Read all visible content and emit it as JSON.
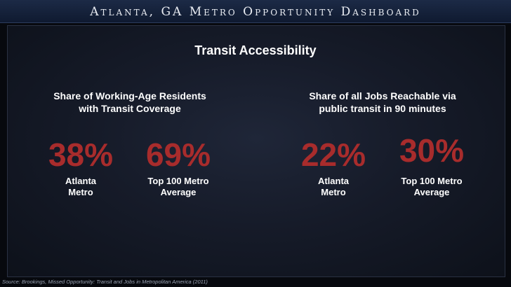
{
  "header": {
    "title": "Atlanta, GA Metro Opportunity Dashboard"
  },
  "main": {
    "section_title": "Transit Accessibility",
    "groups": [
      {
        "title_line1": "Share of Working-Age Residents",
        "title_line2": "with Transit Coverage",
        "stats": [
          {
            "value": "38%",
            "label_line1": "Atlanta",
            "label_line2": "Metro"
          },
          {
            "value": "69%",
            "label_line1": "Top 100 Metro",
            "label_line2": "Average"
          }
        ]
      },
      {
        "title_line1": "Share of all Jobs Reachable via",
        "title_line2": "public transit in 90 minutes",
        "stats": [
          {
            "value": "22%",
            "label_line1": "Atlanta",
            "label_line2": "Metro"
          },
          {
            "value": "30%",
            "label_line1": "Top 100 Metro",
            "label_line2": "Average"
          }
        ]
      }
    ]
  },
  "footer": {
    "source": "Source: Brookings, Missed Opportunity: Transit and Jobs in Metropolitan America (2011)"
  },
  "colors": {
    "highlight": "#a82c2c",
    "text": "#ffffff",
    "header_bg": "#14203a",
    "background": "#07090e"
  }
}
